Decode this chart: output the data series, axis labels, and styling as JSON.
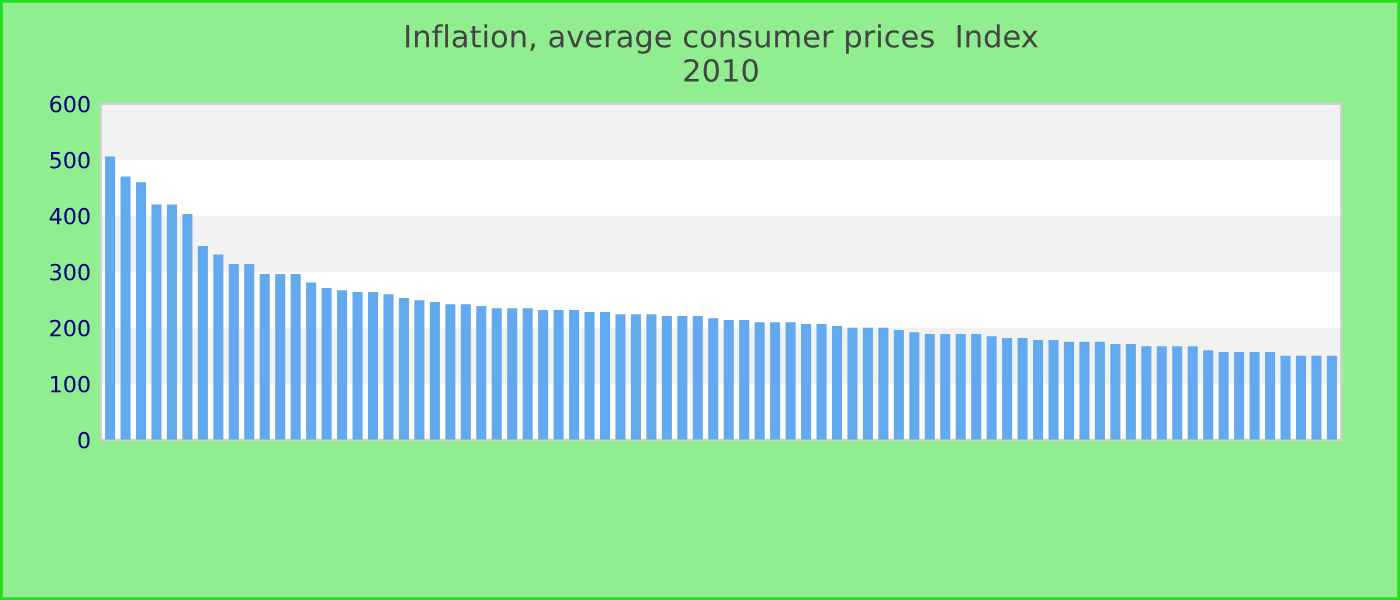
{
  "chart_data": {
    "type": "bar",
    "title": "Inflation, average consumer prices  Index\n2010",
    "categories": [
      null,
      null,
      null,
      null,
      null,
      null,
      null,
      null,
      null,
      null,
      null,
      null,
      null,
      null,
      null,
      null,
      null,
      null,
      null,
      null,
      null,
      null,
      null,
      null,
      null,
      null,
      null,
      null,
      null,
      null,
      null,
      null,
      null,
      null,
      null,
      null,
      null,
      null,
      null,
      null,
      null,
      null,
      null,
      null,
      null,
      null,
      null,
      null,
      null,
      null,
      null,
      null,
      null,
      null,
      null,
      null,
      null,
      null,
      null,
      null,
      null,
      null,
      null,
      null,
      null,
      null,
      null,
      null,
      null,
      null,
      null,
      null,
      null,
      null,
      null,
      null,
      null,
      null,
      null,
      null
    ],
    "values": [
      506,
      470,
      460,
      420,
      420,
      403,
      346,
      331,
      314,
      314,
      296,
      296,
      296,
      281,
      271,
      267,
      264,
      264,
      260,
      253,
      249,
      246,
      242,
      242,
      239,
      235,
      235,
      235,
      232,
      232,
      232,
      228,
      228,
      224,
      224,
      224,
      221,
      221,
      221,
      217,
      214,
      214,
      210,
      210,
      210,
      207,
      207,
      203,
      200,
      200,
      200,
      196,
      192,
      189,
      189,
      189,
      189,
      185,
      182,
      182,
      178,
      178,
      175,
      175,
      175,
      171,
      171,
      167,
      167,
      167,
      167,
      160,
      157,
      157,
      157,
      157,
      150,
      150,
      150,
      150
    ],
    "color": "#63a9f0",
    "ylim": [
      0,
      600
    ],
    "yticks": [
      0,
      100,
      200,
      300,
      400,
      500,
      600
    ],
    "bands": [
      {
        "axis": "y",
        "from": 100,
        "to": 200,
        "color": "#f2f2f2"
      },
      {
        "axis": "y",
        "from": 300,
        "to": 400,
        "color": "#f2f2f2"
      },
      {
        "axis": "y",
        "from": 500,
        "to": 600,
        "color": "#f2f2f2"
      }
    ]
  }
}
